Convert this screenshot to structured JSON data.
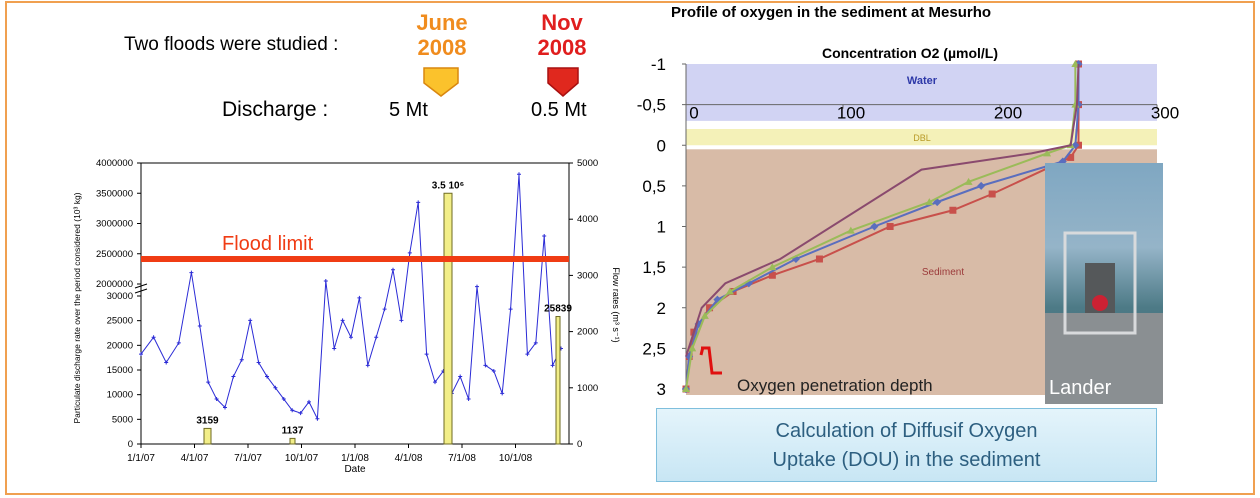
{
  "header": {
    "floods_intro": "Two floods were studied :",
    "flood_june_month": "June",
    "flood_june_year": "2008",
    "flood_nov_month": "Nov",
    "flood_nov_year": "2008",
    "discharge_label": "Discharge :",
    "discharge_june": "5 Mt",
    "discharge_nov": "0.5 Mt",
    "colors": {
      "june": "#F08C1E",
      "nov": "#E01E1E",
      "frame": "#F0A050"
    }
  },
  "oxygen_panel": {
    "title": "Profile of oxygen in the sediment at Mesurho",
    "callout_line1": "Calculation of Diffusif Oxygen",
    "callout_line2": "Uptake (DOU) in the sediment",
    "photo_label": "Lander"
  },
  "chart_data": [
    {
      "type": "line",
      "ylabel_left": "Particulate discharge rate over the period considered (10³ kg)",
      "ylabel_right": "Flow rates (m³ s⁻¹)",
      "xlabel": "Date",
      "x_ticks": [
        "1/1/07",
        "4/1/07",
        "7/1/07",
        "10/1/07",
        "1/1/08",
        "4/1/08",
        "7/1/08",
        "10/1/08"
      ],
      "y_ticks_left_upper": [
        "2000000",
        "2500000",
        "3000000",
        "3500000",
        "4000000"
      ],
      "y_ticks_left_lower": [
        "0",
        "5000",
        "10000",
        "15000",
        "20000",
        "25000",
        "30000"
      ],
      "y_ticks_right": [
        "0",
        "1000",
        "2000",
        "3000",
        "4000",
        "5000"
      ],
      "flow_rate_series": {
        "name": "Flow rate",
        "color": "#2B2BD6",
        "x": [
          0,
          0.03,
          0.06,
          0.09,
          0.12,
          0.14,
          0.16,
          0.18,
          0.2,
          0.22,
          0.24,
          0.26,
          0.28,
          0.3,
          0.32,
          0.34,
          0.36,
          0.38,
          0.4,
          0.42,
          0.44,
          0.46,
          0.48,
          0.5,
          0.52,
          0.54,
          0.56,
          0.58,
          0.6,
          0.62,
          0.64,
          0.66,
          0.68,
          0.7,
          0.72,
          0.74,
          0.76,
          0.78,
          0.8,
          0.82,
          0.84,
          0.86,
          0.88,
          0.9,
          0.92,
          0.94,
          0.96,
          0.98,
          1.0
        ],
        "y": [
          1600,
          1900,
          1450,
          1800,
          3050,
          2100,
          1100,
          800,
          650,
          1200,
          1500,
          2200,
          1450,
          1200,
          1000,
          800,
          600,
          550,
          750,
          450,
          2900,
          1700,
          2200,
          1900,
          2600,
          1400,
          1900,
          2400,
          3100,
          2200,
          3400,
          4300,
          1600,
          1100,
          1300,
          900,
          1200,
          800,
          2800,
          1400,
          1300,
          900,
          2400,
          4800,
          1600,
          1800,
          3700,
          1400,
          1700
        ]
      },
      "discharge_bars": [
        {
          "label": "3159",
          "value": 3159
        },
        {
          "label": "1137",
          "value": 1137
        },
        {
          "label": "3.5 10⁶",
          "value": 3500000
        },
        {
          "label": "25839",
          "value": 25839
        }
      ],
      "annotation": "Flood limit",
      "flood_limit_color": "#F03C14"
    },
    {
      "type": "line",
      "title": "Concentration O2 (µmol/L)",
      "x_ticks": [
        "0",
        "100",
        "200",
        "300"
      ],
      "xlim": [
        0,
        300
      ],
      "y_ticks": [
        "-1",
        "-0,5",
        "0",
        "0,5",
        "1",
        "1,5",
        "2",
        "2,5",
        "3"
      ],
      "ylim": [
        -1,
        3
      ],
      "zones": [
        "Water",
        "DBL",
        "Sediment"
      ],
      "annotation": "Oxygen penetration depth",
      "series": [
        {
          "color": "#C8504B",
          "x": [
            250,
            250,
            250,
            245,
            195,
            170,
            130,
            85,
            55,
            30,
            15,
            5,
            2,
            0
          ],
          "y": [
            -1,
            -0.5,
            0,
            0.15,
            0.6,
            0.8,
            1.0,
            1.4,
            1.6,
            1.8,
            2.0,
            2.3,
            2.6,
            3.0
          ]
        },
        {
          "color": "#5A6EBE",
          "x": [
            250,
            250,
            248,
            240,
            188,
            160,
            120,
            70,
            40,
            20,
            8,
            2,
            0
          ],
          "y": [
            -1,
            -0.5,
            0,
            0.2,
            0.5,
            0.7,
            1.0,
            1.4,
            1.7,
            1.9,
            2.2,
            2.6,
            3.0
          ]
        },
        {
          "color": "#9BBB59",
          "x": [
            248,
            248,
            245,
            230,
            180,
            155,
            105,
            55,
            28,
            12,
            4,
            0
          ],
          "y": [
            -1,
            -0.5,
            0,
            0.1,
            0.45,
            0.7,
            1.05,
            1.5,
            1.8,
            2.1,
            2.5,
            3.0
          ]
        },
        {
          "color": "#8A4A6E",
          "x": [
            250,
            249,
            245,
            220,
            150,
            60,
            25,
            10,
            0
          ],
          "y": [
            -1,
            -0.5,
            0,
            0.1,
            0.3,
            1.4,
            1.7,
            2.0,
            2.6
          ]
        }
      ]
    }
  ]
}
